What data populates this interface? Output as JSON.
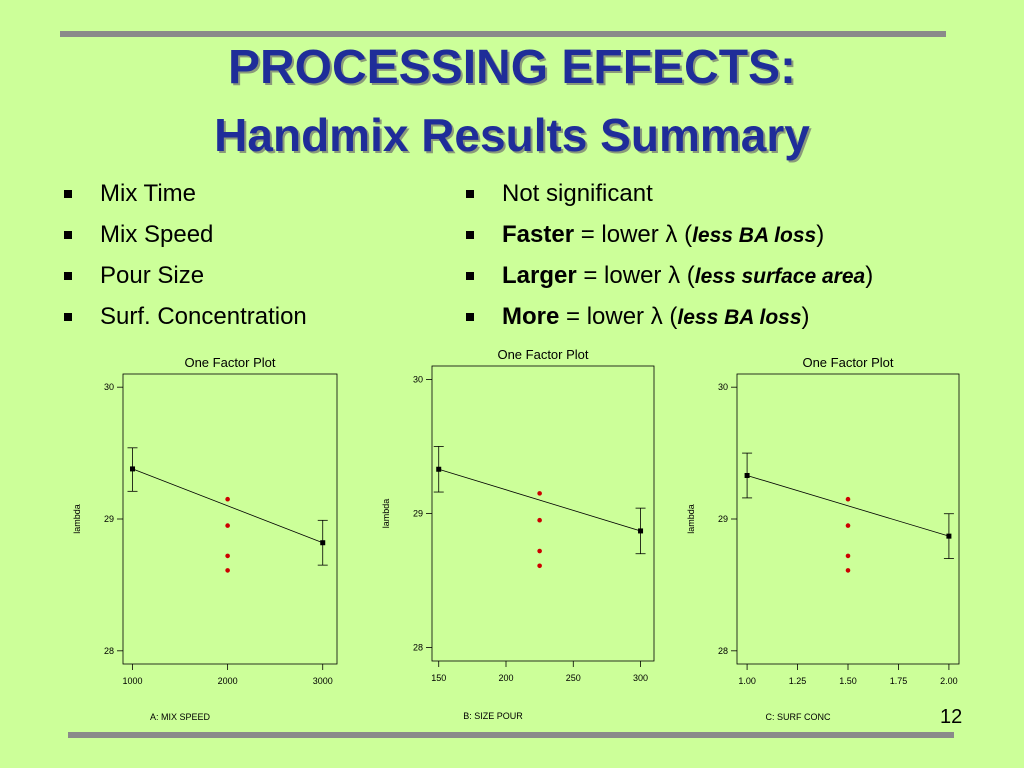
{
  "slide": {
    "title_line1": "PROCESSING EFFECTS:",
    "title_line2": "Handmix Results Summary",
    "page_number": "12"
  },
  "factors": [
    "Mix Time",
    "Mix Speed",
    "Pour Size",
    "Surf. Concentration"
  ],
  "effects": [
    {
      "bold": "",
      "text": "Not significant",
      "paren_open": "",
      "note": "",
      "paren_close": ""
    },
    {
      "bold": "Faster",
      "text": " = lower λ  ",
      "paren_open": "(",
      "note": "less BA loss",
      "paren_close": ")"
    },
    {
      "bold": "Larger",
      "text": " = lower λ ",
      "paren_open": "(",
      "note": "less surface area",
      "paren_close": ")"
    },
    {
      "bold": "More",
      "text": " = lower λ   ",
      "paren_open": "(",
      "note": "less BA loss",
      "paren_close": ")"
    }
  ],
  "colors": {
    "background": "#ccff99",
    "title": "#1f2d99",
    "rule": "#8a8a8a",
    "line": "#000000",
    "center_points": "#cc0000"
  },
  "chart_data": [
    {
      "type": "line",
      "title": "One Factor Plot",
      "xlabel": "A: MIX SPEED",
      "ylabel": "lambda",
      "xlim": [
        900,
        3150
      ],
      "ylim": [
        27.9,
        30.1
      ],
      "xticks": [
        1000,
        2000,
        3000
      ],
      "xtick_labels": [
        "1000",
        "2000",
        "3000"
      ],
      "yticks": [
        28,
        29,
        30
      ],
      "x": [
        1000,
        3000
      ],
      "y": [
        29.38,
        28.82
      ],
      "error_bars": [
        [
          29.21,
          29.54
        ],
        [
          28.65,
          28.99
        ]
      ],
      "center_x": 2000,
      "center_points": [
        29.15,
        28.95,
        28.72,
        28.61
      ]
    },
    {
      "type": "line",
      "title": "One Factor Plot",
      "xlabel": "B: SIZE POUR",
      "ylabel": "lambda",
      "xlim": [
        145,
        310
      ],
      "ylim": [
        27.9,
        30.1
      ],
      "xticks": [
        150,
        200,
        250,
        300
      ],
      "xtick_labels": [
        "150",
        "200",
        "250",
        "300"
      ],
      "yticks": [
        28,
        29,
        30
      ],
      "x": [
        150,
        300
      ],
      "y": [
        29.33,
        28.87
      ],
      "error_bars": [
        [
          29.16,
          29.5
        ],
        [
          28.7,
          29.04
        ]
      ],
      "center_x": 225,
      "center_points": [
        29.15,
        28.95,
        28.72,
        28.61
      ]
    },
    {
      "type": "line",
      "title": "One Factor Plot",
      "xlabel": "C: SURF CONC",
      "ylabel": "lambda",
      "xlim": [
        0.95,
        2.05
      ],
      "ylim": [
        27.9,
        30.1
      ],
      "xticks": [
        1.0,
        1.25,
        1.5,
        1.75,
        2.0
      ],
      "xtick_labels": [
        "1.00",
        "1.25",
        "1.50",
        "1.75",
        "2.00"
      ],
      "yticks": [
        28,
        29,
        30
      ],
      "x": [
        1.0,
        2.0
      ],
      "y": [
        29.33,
        28.87
      ],
      "error_bars": [
        [
          29.16,
          29.5
        ],
        [
          28.7,
          29.04
        ]
      ],
      "center_x": 1.5,
      "center_points": [
        29.15,
        28.95,
        28.72,
        28.61
      ]
    }
  ]
}
